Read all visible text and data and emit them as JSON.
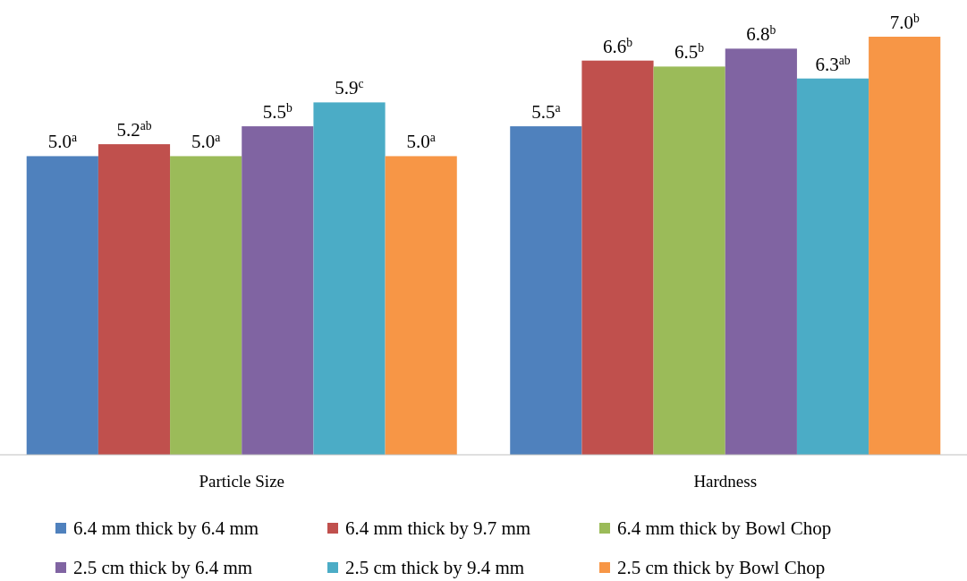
{
  "chart_data": {
    "type": "bar",
    "categories": [
      "Particle Size",
      "Hardness"
    ],
    "tick_labels": "x",
    "legend": "bottom",
    "series": [
      {
        "name": "6.4 mm thick by 6.4 mm",
        "color": "#4f81bd",
        "values": [
          5.0,
          5.5
        ],
        "value_labels": [
          "5.0$^{a}$",
          "5.5$^{a}$"
        ]
      },
      {
        "name": "6.4 mm thick by 9.7 mm",
        "color": "#c0504d",
        "values": [
          5.2,
          6.6
        ],
        "value_labels": [
          "5.2$^{ab}$",
          "6.6$^{b}$"
        ]
      },
      {
        "name": "6.4 mm thick by Bowl Chop",
        "color": "#9bbb59",
        "values": [
          5.0,
          6.5
        ],
        "value_labels": [
          "5.0$^{a}$",
          "6.5$^{b}$"
        ]
      },
      {
        "name": "2.5 cm thick by 6.4 mm",
        "color": "#8064a2",
        "values": [
          5.5,
          6.8
        ],
        "value_labels": [
          "5.5$^{b}$",
          "6.8$^{b}$"
        ]
      },
      {
        "name": "2.5 cm thick by 9.4 mm",
        "color": "#4bacc6",
        "values": [
          5.9,
          6.3
        ],
        "value_labels": [
          "5.9$^{c}$",
          "6.3$^{ab}$"
        ]
      },
      {
        "name": "2.5 cm thick by Bowl Chop",
        "color": "#f79646",
        "values": [
          5.0,
          7.0
        ],
        "value_labels": [
          "5.0$^{a}$",
          "7.0$^{b}$"
        ]
      }
    ]
  }
}
